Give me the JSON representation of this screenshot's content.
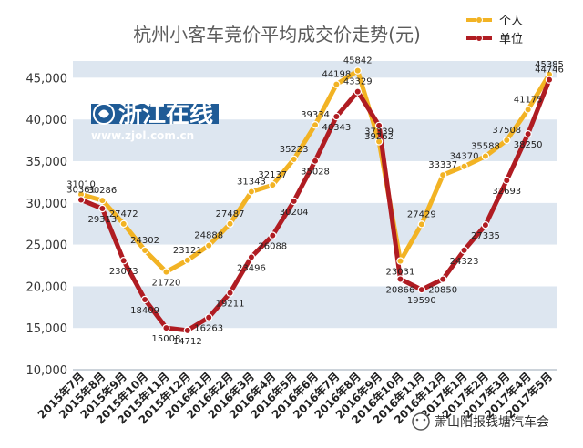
{
  "chart_data": {
    "type": "line",
    "title": "杭州小客车竞价平均成交价走势(元)",
    "categories": [
      "2015年7月",
      "2015年8月",
      "2015年9月",
      "2015年10月",
      "2015年11月",
      "2015年12月",
      "2016年1月",
      "2016年2月",
      "2016年3月",
      "2016年4月",
      "2016年5月",
      "2016年6月",
      "2016年7月",
      "2016年8月",
      "2016年9月",
      "2016年10月",
      "2016年11月",
      "2016年12月",
      "2017年1月",
      "2017年2月",
      "2017年3月",
      "2017年4月",
      "2017年5月"
    ],
    "series": [
      {
        "name": "个人",
        "color": "#f2b324",
        "values": [
          31010,
          30286,
          27472,
          24302,
          21720,
          23121,
          24888,
          27487,
          31343,
          32137,
          35223,
          39334,
          44198,
          45842,
          37339,
          23031,
          27429,
          33337,
          34370,
          35588,
          37508,
          41175,
          45385
        ]
      },
      {
        "name": "单位",
        "color": "#b01c22",
        "values": [
          30361,
          29313,
          23073,
          18409,
          15008,
          14712,
          16263,
          19211,
          23496,
          26088,
          30204,
          35028,
          40343,
          43329,
          39262,
          20866,
          19590,
          20850,
          24323,
          27335,
          32693,
          38250,
          44746
        ]
      }
    ],
    "ylim": [
      10000,
      47000
    ],
    "yticks": [
      10000,
      15000,
      20000,
      25000,
      30000,
      35000,
      40000,
      45000
    ],
    "ytick_labels": [
      "10,000",
      "15,000",
      "20,000",
      "25,000",
      "30,000",
      "35,000",
      "40,000",
      "45,000"
    ],
    "grid": "horizontal bands",
    "legend": "top-right"
  },
  "logo": {
    "name": "浙江在线",
    "url": "www.zjol.com.cn"
  },
  "watermark": {
    "text": "萧山阳报钱塘汽车会"
  }
}
